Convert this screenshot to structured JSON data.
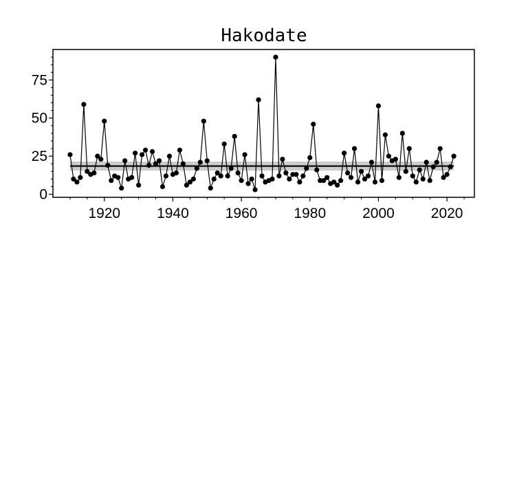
{
  "chart_data": {
    "type": "line",
    "title": "Hakodate",
    "xlabel": "",
    "ylabel": "",
    "xlim": [
      1905,
      2028
    ],
    "ylim": [
      -2,
      95
    ],
    "xticks": [
      1920,
      1940,
      1960,
      1980,
      2000,
      2020
    ],
    "yticks": [
      0,
      25,
      50,
      75
    ],
    "grid": false,
    "legend": "none",
    "colors": {
      "series": "#000000",
      "trend": "#000000",
      "band": "#cccccc"
    },
    "series": [
      {
        "x": [
          1910,
          1911,
          1912,
          1913,
          1914,
          1915,
          1916,
          1917,
          1918,
          1919,
          1920,
          1921,
          1922,
          1923,
          1924,
          1925,
          1926,
          1927,
          1928,
          1929,
          1930,
          1931,
          1932,
          1933,
          1934,
          1935,
          1936,
          1937,
          1938,
          1939,
          1940,
          1941,
          1942,
          1943,
          1944,
          1945,
          1946,
          1947,
          1948,
          1949,
          1950,
          1951,
          1952,
          1953,
          1954,
          1955,
          1956,
          1957,
          1958,
          1959,
          1960,
          1961,
          1962,
          1963,
          1964,
          1965,
          1966,
          1967,
          1968,
          1969,
          1970,
          1971,
          1972,
          1973,
          1974,
          1975,
          1976,
          1977,
          1978,
          1979,
          1980,
          1981,
          1982,
          1983,
          1984,
          1985,
          1986,
          1987,
          1988,
          1989,
          1990,
          1991,
          1992,
          1993,
          1994,
          1995,
          1996,
          1997,
          1998,
          1999,
          2000,
          2001,
          2002,
          2003,
          2004,
          2005,
          2006,
          2007,
          2008,
          2009,
          2010,
          2011,
          2012,
          2013,
          2014,
          2015,
          2016,
          2017,
          2018,
          2019,
          2020,
          2021,
          2022
        ],
        "values": [
          26,
          10,
          8,
          11,
          59,
          15,
          13,
          14,
          25,
          23,
          48,
          19,
          9,
          12,
          11,
          4,
          22,
          10,
          11,
          27,
          6,
          26,
          29,
          19,
          28,
          20,
          22,
          5,
          12,
          25,
          13,
          14,
          29,
          20,
          6,
          8,
          10,
          17,
          21,
          48,
          22,
          4,
          10,
          14,
          12,
          33,
          12,
          17,
          38,
          14,
          9,
          26,
          7,
          10,
          3,
          62,
          12,
          8,
          9,
          10,
          90,
          12,
          23,
          14,
          10,
          13,
          13,
          8,
          12,
          17,
          24,
          46,
          16,
          9,
          9,
          11,
          7,
          8,
          6,
          9,
          27,
          14,
          11,
          30,
          8,
          15,
          10,
          12,
          21,
          8,
          58,
          9,
          39,
          25,
          22,
          23,
          11,
          40,
          15,
          30,
          12,
          8,
          16,
          10,
          21,
          9,
          18,
          21,
          30,
          11,
          13,
          18,
          25
        ]
      }
    ],
    "trend": {
      "value": 18.5,
      "band": [
        15.5,
        21.5
      ],
      "x_range": [
        1910,
        2022
      ]
    }
  }
}
